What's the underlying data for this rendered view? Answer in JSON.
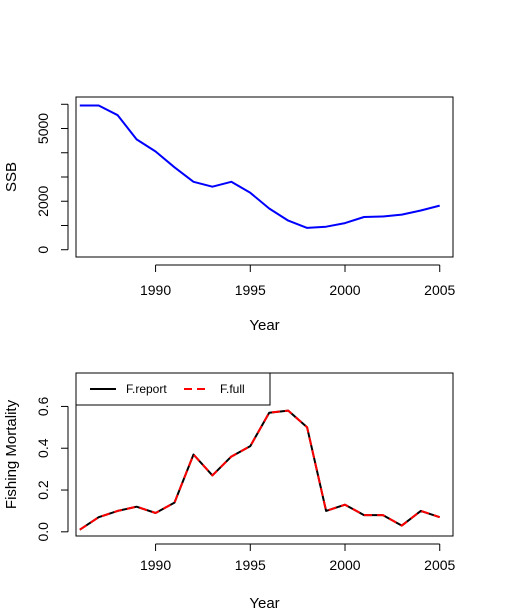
{
  "chart_data": [
    {
      "type": "line",
      "xlabel": "Year",
      "ylabel": "SSB",
      "xlim": [
        1985.8,
        2005.7
      ],
      "ylim": [
        -300,
        6300
      ],
      "xticks": [
        1990,
        1995,
        2000,
        2005
      ],
      "yticks": [
        0,
        1000,
        2000,
        3000,
        4000,
        5000,
        6000
      ],
      "ytick_labels": [
        "0",
        "",
        "2000",
        "",
        "",
        "5000",
        ""
      ],
      "x": [
        1986,
        1987,
        1988,
        1989,
        1990,
        1991,
        1992,
        1993,
        1994,
        1995,
        1996,
        1997,
        1998,
        1999,
        2000,
        2001,
        2002,
        2003,
        2004,
        2005
      ],
      "series": [
        {
          "color": "#0000ff",
          "values": [
            5950,
            5950,
            5550,
            4550,
            4050,
            3400,
            2800,
            2600,
            2800,
            2350,
            1700,
            1200,
            900,
            950,
            1100,
            1350,
            1370,
            1450,
            1620,
            1820
          ]
        }
      ],
      "grid": false
    },
    {
      "type": "line",
      "xlabel": "Year",
      "ylabel": "Fishing Mortality",
      "xlim": [
        1985.8,
        2005.7
      ],
      "ylim": [
        -0.02,
        0.76
      ],
      "xticks": [
        1990,
        1995,
        2000,
        2005
      ],
      "yticks": [
        0.0,
        0.2,
        0.4,
        0.6
      ],
      "ytick_labels": [
        "0.0",
        "0.2",
        "0.4",
        "0.6"
      ],
      "x": [
        1986,
        1987,
        1988,
        1989,
        1990,
        1991,
        1992,
        1993,
        1994,
        1995,
        1996,
        1997,
        1998,
        1999,
        2000,
        2001,
        2002,
        2003,
        2004,
        2005
      ],
      "series": [
        {
          "name": "F.report",
          "color": "#000000",
          "dash": "solid",
          "values": [
            0.01,
            0.07,
            0.1,
            0.12,
            0.09,
            0.14,
            0.37,
            0.27,
            0.36,
            0.41,
            0.57,
            0.58,
            0.5,
            0.1,
            0.13,
            0.08,
            0.08,
            0.03,
            0.1,
            0.07
          ]
        },
        {
          "name": "F.full",
          "color": "#ff0000",
          "dash": "dashed",
          "values": [
            0.01,
            0.07,
            0.1,
            0.12,
            0.09,
            0.14,
            0.37,
            0.27,
            0.36,
            0.41,
            0.57,
            0.58,
            0.5,
            0.1,
            0.13,
            0.08,
            0.08,
            0.03,
            0.1,
            0.07
          ]
        }
      ],
      "legend": "top-left",
      "grid": false
    }
  ]
}
